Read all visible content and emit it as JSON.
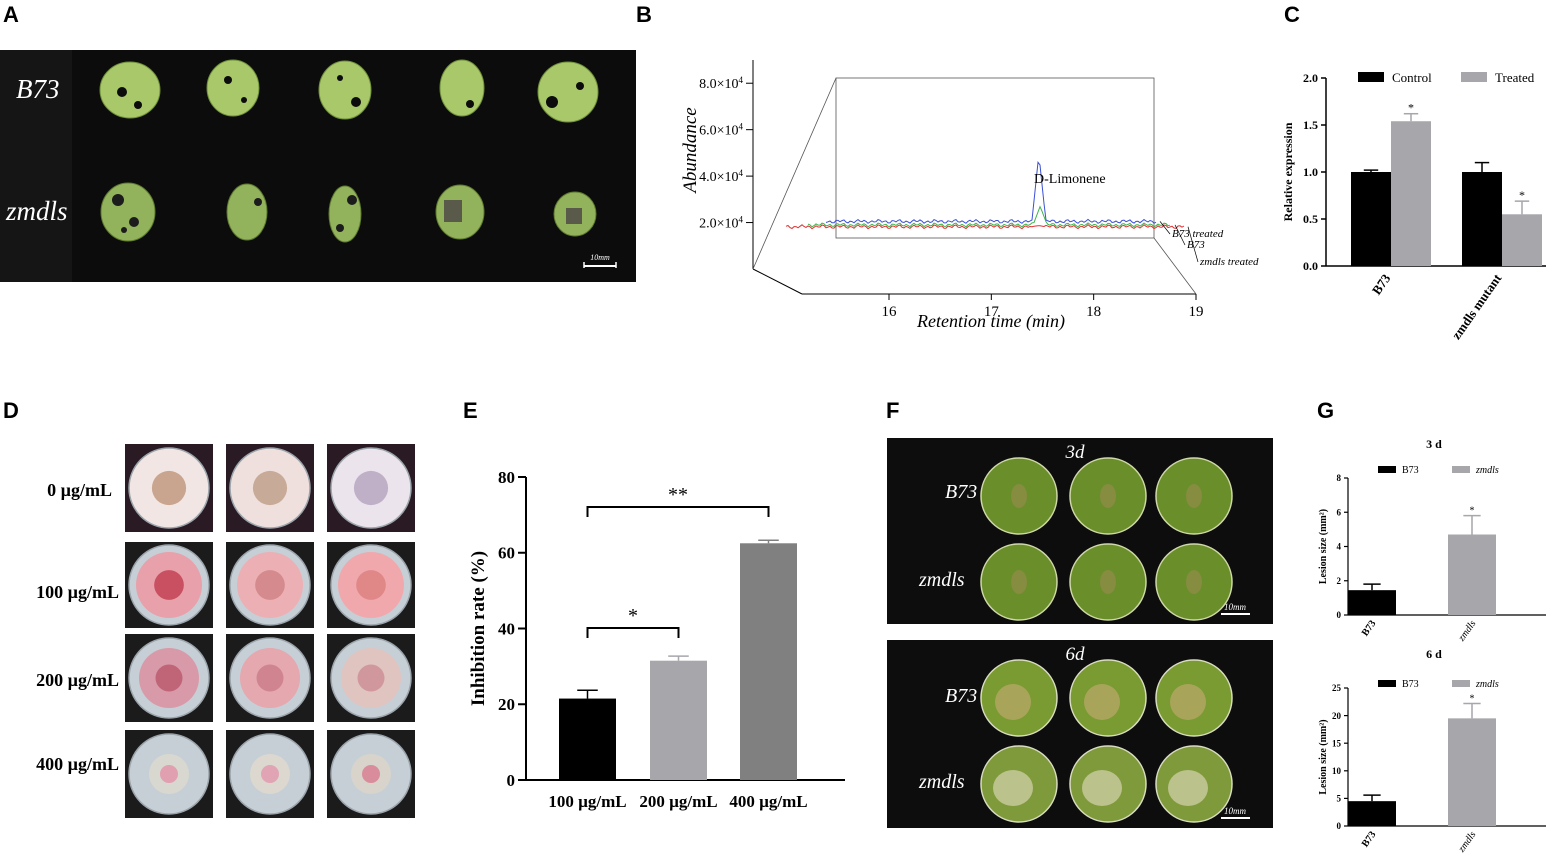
{
  "panel_letters": {
    "a": "A",
    "b": "B",
    "c": "C",
    "d": "D",
    "e": "E",
    "f": "F",
    "g": "G"
  },
  "panel_a": {
    "row1": "B73",
    "row2": "zmdls",
    "scale": "10mm"
  },
  "panel_d": {
    "rows": [
      "0 µg/mL",
      "100 µg/mL",
      "200 µg/mL",
      "400 µg/mL"
    ]
  },
  "panel_f": {
    "top_title": "3d",
    "bottom_title": "6d",
    "row1": "B73",
    "row2": "zmdls",
    "scale": "10mm"
  },
  "colors": {
    "black": "#000000",
    "light_gray": "#a6a6ab",
    "mid_gray": "#808080",
    "blue": "#3a4fd6",
    "green": "#3cb44b",
    "red": "#e0302f"
  },
  "chart_data": [
    {
      "id": "B",
      "type": "line",
      "ylabel": "Abundance",
      "xlabel": "Retention time (min)",
      "ytick_labels": [
        "2.0×10",
        "4.0×10",
        "6.0×10",
        "8.0×10"
      ],
      "ytick_exp": "4",
      "ytick_values": [
        20000,
        40000,
        60000,
        80000
      ],
      "xtick_labels": [
        "16",
        "17",
        "18",
        "19"
      ],
      "annotation": "D-Limonene",
      "peak_x": 17.4,
      "series": [
        {
          "name": "B73 treated",
          "baseline": 20500,
          "peak": 49500,
          "color": "blue"
        },
        {
          "name": "B73",
          "baseline": 19000,
          "peak": 27000,
          "color": "green"
        },
        {
          "name": "zmdls treated",
          "baseline": 18200,
          "peak": 18700,
          "color": "red"
        }
      ]
    },
    {
      "id": "C",
      "type": "bar",
      "categories": [
        "B73",
        "zmdls mutant"
      ],
      "series": [
        {
          "name": "Control",
          "values": [
            1.0,
            1.0
          ],
          "errors": [
            0.02,
            0.1
          ],
          "color": "black"
        },
        {
          "name": "Treated",
          "values": [
            1.54,
            0.55
          ],
          "errors": [
            0.08,
            0.14
          ],
          "color": "light_gray"
        }
      ],
      "significance": [
        "*",
        "*"
      ],
      "ylabel": "Relative expression",
      "ylim": [
        0,
        2.0
      ],
      "yticks": [
        "0.0",
        "0.5",
        "1.0",
        "1.5",
        "2.0"
      ]
    },
    {
      "id": "E",
      "type": "bar",
      "categories": [
        "100 µg/mL",
        "200 µg/mL",
        "400 µg/mL"
      ],
      "values": [
        21.5,
        31.5,
        62.5
      ],
      "errors": [
        2.2,
        1.2,
        0.8
      ],
      "bar_colors": [
        "black",
        "light_gray",
        "mid_gray"
      ],
      "ylabel": "Inhibition rate (%)",
      "ylim": [
        0,
        80
      ],
      "yticks": [
        "0",
        "20",
        "40",
        "60",
        "80"
      ],
      "significance": [
        {
          "from": 0,
          "to": 1,
          "label": "*"
        },
        {
          "from": 0,
          "to": 2,
          "label": "**"
        }
      ]
    },
    {
      "id": "G-3d",
      "type": "bar",
      "title": "3 d",
      "categories": [
        "B73",
        "zmdls"
      ],
      "values": [
        1.45,
        4.7
      ],
      "errors": [
        0.35,
        1.1
      ],
      "series_names": [
        "B73",
        "zmdls"
      ],
      "bar_colors": [
        "black",
        "light_gray"
      ],
      "ylabel": "Lesion size (mm²)",
      "ylim": [
        0,
        8
      ],
      "yticks": [
        "0",
        "2",
        "4",
        "6",
        "8"
      ],
      "significance": [
        "",
        "*"
      ]
    },
    {
      "id": "G-6d",
      "type": "bar",
      "title": "6 d",
      "categories": [
        "B73",
        "zmdls"
      ],
      "values": [
        4.5,
        19.5
      ],
      "errors": [
        1.1,
        2.7
      ],
      "series_names": [
        "B73",
        "zmdls"
      ],
      "bar_colors": [
        "black",
        "light_gray"
      ],
      "ylabel": "Lesion size (mm²)",
      "ylim": [
        0,
        25
      ],
      "yticks": [
        "0",
        "5",
        "10",
        "15",
        "20",
        "25"
      ],
      "significance": [
        "",
        "*"
      ]
    }
  ]
}
